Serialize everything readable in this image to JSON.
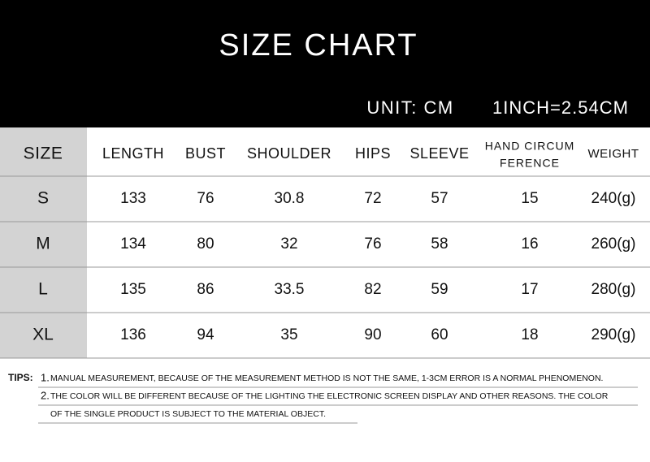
{
  "header": {
    "title": "SIZE CHART",
    "unit": "UNIT: CM",
    "conversion": "1INCH=2.54CM"
  },
  "table": {
    "headers": [
      "SIZE",
      "LENGTH",
      "BUST",
      "SHOULDER",
      "HIPS",
      "SLEEVE",
      [
        "HAND CIRCUM",
        "FERENCE"
      ],
      "WEIGHT"
    ],
    "rows": [
      [
        "S",
        133,
        76,
        30.8,
        72,
        57,
        15,
        "240(g)"
      ],
      [
        "M",
        134,
        80,
        32,
        76,
        58,
        16,
        "260(g)"
      ],
      [
        "L",
        135,
        86,
        33.5,
        82,
        59,
        17,
        "280(g)"
      ],
      [
        "XL",
        136,
        94,
        35,
        90,
        60,
        18,
        "290(g)"
      ]
    ]
  },
  "tips": {
    "label": "TIPS:",
    "items": [
      {
        "number": "1.",
        "lines": [
          "MANUAL MEASUREMENT, BECAUSE OF THE MEASUREMENT METHOD IS NOT THE SAME, 1-3CM ERROR IS A NORMAL PHENOMENON."
        ]
      },
      {
        "number": "2.",
        "lines": [
          "THE COLOR WILL BE DIFFERENT BECAUSE OF THE LIGHTING THE ELECTRONIC SCREEN DISPLAY AND OTHER REASONS. THE COLOR",
          "OF THE SINGLE PRODUCT IS SUBJECT TO THE MATERIAL OBJECT."
        ]
      }
    ]
  }
}
